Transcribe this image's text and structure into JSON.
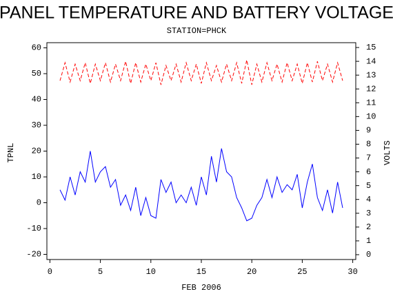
{
  "chart_data": {
    "type": "line",
    "title": "PANEL TEMPERATURE AND BATTERY VOLTAGE",
    "subtitle": "STATION=PHCK",
    "x_label": "FEB 2006",
    "y_label": "TPNL",
    "y2_label": "VOLTS",
    "x": [
      1,
      1.5,
      2,
      2.5,
      3,
      3.5,
      4,
      4.5,
      5,
      5.5,
      6,
      6.5,
      7,
      7.5,
      8,
      8.5,
      9,
      9.5,
      10,
      10.5,
      11,
      11.5,
      12,
      12.5,
      13,
      13.5,
      14,
      14.5,
      15,
      15.5,
      16,
      16.5,
      17,
      17.5,
      18,
      18.5,
      19,
      19.5,
      20,
      20.5,
      21,
      21.5,
      22,
      22.5,
      23,
      23.5,
      24,
      24.5,
      25,
      25.5,
      26,
      26.5,
      27,
      27.5,
      28,
      28.5,
      29
    ],
    "series": [
      {
        "name": "TPNL",
        "color": "#0000ff",
        "line_style": "solid",
        "values": [
          5,
          1,
          10,
          3,
          12,
          8,
          20,
          8,
          12,
          14,
          6,
          9,
          -1,
          3,
          -3,
          6,
          -5,
          2,
          -5,
          -6,
          9,
          4,
          8,
          0,
          3,
          0,
          6,
          -1,
          10,
          3,
          18,
          8,
          21,
          12,
          10,
          2,
          -2,
          -7,
          -6,
          -1,
          2,
          9,
          2,
          10,
          4,
          7,
          5,
          11,
          -2,
          8,
          15,
          2,
          -3,
          5,
          -4,
          8,
          -2
        ]
      },
      {
        "name": "VOLTS",
        "color": "#ff0000",
        "line_style": "dashed",
        "axis": "y2",
        "values": [
          12.6,
          13.9,
          12.5,
          13.8,
          12.6,
          13.9,
          12.4,
          13.8,
          12.6,
          13.9,
          12.5,
          13.8,
          12.6,
          14.0,
          12.4,
          13.9,
          12.5,
          13.8,
          12.6,
          13.9,
          12.3,
          13.7,
          12.6,
          13.8,
          12.5,
          13.9,
          12.6,
          13.8,
          12.4,
          13.9,
          12.6,
          13.7,
          12.5,
          13.8,
          12.6,
          13.9,
          12.4,
          14.1,
          12.3,
          13.8,
          12.5,
          13.9,
          12.6,
          13.8,
          12.5,
          13.9,
          12.6,
          13.8,
          12.4,
          13.9,
          12.5,
          14.0,
          12.6,
          13.8,
          12.5,
          13.9,
          12.6
        ]
      }
    ],
    "xlim": [
      -0.3,
      30.3
    ],
    "xticks": [
      0,
      5,
      10,
      15,
      20,
      25,
      30
    ],
    "ylim": [
      -22,
      62
    ],
    "yticks": [
      -20,
      -10,
      0,
      10,
      20,
      30,
      40,
      50,
      60
    ],
    "y2lim": [
      -0.35,
      15.35
    ],
    "y2ticks": [
      0,
      1,
      2,
      3,
      4,
      5,
      6,
      7,
      8,
      9,
      10,
      11,
      12,
      13,
      14,
      15
    ],
    "grid": false
  }
}
